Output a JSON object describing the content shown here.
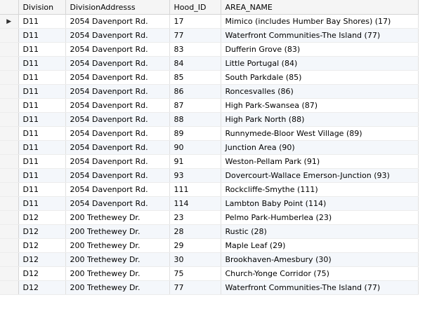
{
  "grid": {
    "columns": [
      "Division",
      "DivisionAddresss",
      "Hood_ID",
      "AREA_NAME"
    ],
    "current_row_marker": "▶",
    "rows": [
      [
        "D11",
        "2054 Davenport Rd.",
        "17",
        "Mimico (includes Humber Bay Shores) (17)"
      ],
      [
        "D11",
        "2054 Davenport Rd.",
        "77",
        "Waterfront Communities-The Island (77)"
      ],
      [
        "D11",
        "2054 Davenport Rd.",
        "83",
        "Dufferin Grove (83)"
      ],
      [
        "D11",
        "2054 Davenport Rd.",
        "84",
        "Little Portugal (84)"
      ],
      [
        "D11",
        "2054 Davenport Rd.",
        "85",
        "South Parkdale (85)"
      ],
      [
        "D11",
        "2054 Davenport Rd.",
        "86",
        "Roncesvalles (86)"
      ],
      [
        "D11",
        "2054 Davenport Rd.",
        "87",
        "High Park-Swansea (87)"
      ],
      [
        "D11",
        "2054 Davenport Rd.",
        "88",
        "High Park North (88)"
      ],
      [
        "D11",
        "2054 Davenport Rd.",
        "89",
        "Runnymede-Bloor West Village (89)"
      ],
      [
        "D11",
        "2054 Davenport Rd.",
        "90",
        "Junction Area (90)"
      ],
      [
        "D11",
        "2054 Davenport Rd.",
        "91",
        "Weston-Pellam Park (91)"
      ],
      [
        "D11",
        "2054 Davenport Rd.",
        "93",
        "Dovercourt-Wallace Emerson-Junction (93)"
      ],
      [
        "D11",
        "2054 Davenport Rd.",
        "111",
        "Rockcliffe-Smythe (111)"
      ],
      [
        "D11",
        "2054 Davenport Rd.",
        "114",
        "Lambton Baby Point (114)"
      ],
      [
        "D12",
        "200 Trethewey Dr.",
        "23",
        "Pelmo Park-Humberlea (23)"
      ],
      [
        "D12",
        "200 Trethewey Dr.",
        "28",
        "Rustic (28)"
      ],
      [
        "D12",
        "200 Trethewey Dr.",
        "29",
        "Maple Leaf (29)"
      ],
      [
        "D12",
        "200 Trethewey Dr.",
        "30",
        "Brookhaven-Amesbury (30)"
      ],
      [
        "D12",
        "200 Trethewey Dr.",
        "75",
        "Church-Yonge Corridor (75)"
      ],
      [
        "D12",
        "200 Trethewey Dr.",
        "77",
        "Waterfront Communities-The Island (77)"
      ]
    ]
  }
}
